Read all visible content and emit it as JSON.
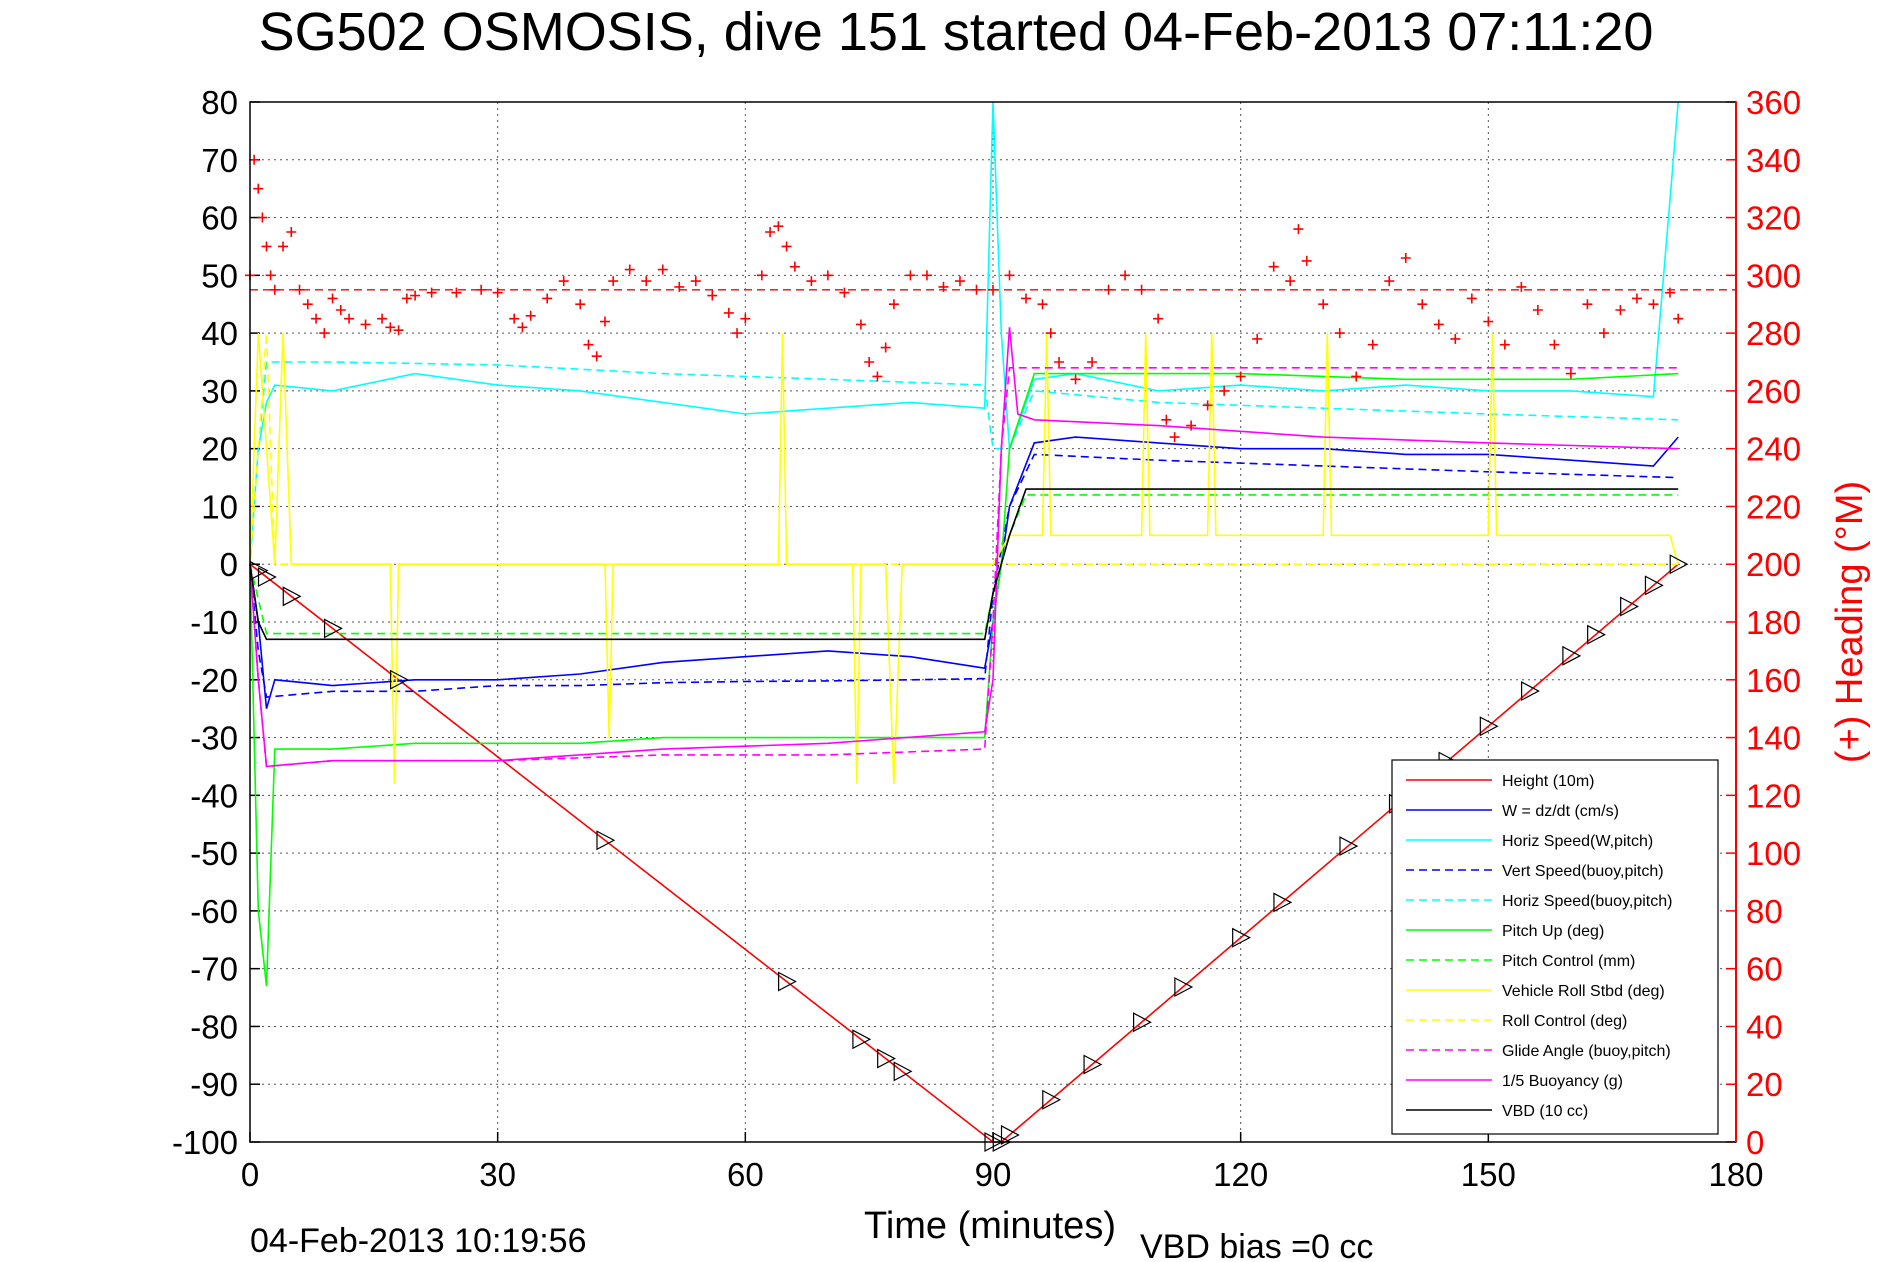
{
  "title": "SG502 OSMOSIS, dive 151 started 04-Feb-2013 07:11:20",
  "footer": {
    "timestamp": "04-Feb-2013 10:19:56",
    "vbd_bias": "VBD bias =0 cc"
  },
  "chart_data": {
    "type": "line",
    "title": "SG502 OSMOSIS, dive 151 started 04-Feb-2013 07:11:20",
    "xlabel": "Time (minutes)",
    "ylabel": "",
    "y2label": "(+) Heading (°M)",
    "xlim": [
      0,
      180
    ],
    "ylim": [
      -100,
      80
    ],
    "y2lim": [
      0,
      360
    ],
    "xticks": [
      0,
      30,
      60,
      90,
      120,
      150,
      180
    ],
    "yticks": [
      80,
      70,
      60,
      50,
      40,
      30,
      20,
      10,
      0,
      -10,
      -20,
      -30,
      -40,
      -50,
      -60,
      -70,
      -80,
      -90,
      -100
    ],
    "y2ticks": [
      360,
      340,
      320,
      300,
      280,
      260,
      240,
      220,
      200,
      180,
      160,
      140,
      120,
      100,
      80,
      60,
      40,
      20,
      0
    ],
    "grid": true,
    "legend_position": "lower-right",
    "colors": {
      "red": "#ff0000",
      "blue": "#0000ff",
      "cyan": "#00ffff",
      "green": "#00ff00",
      "yellow": "#ffff00",
      "magenta": "#ff00ff",
      "black": "#000000"
    },
    "series": [
      {
        "name": "Height (10m)",
        "color": "#ff0000",
        "style": "solid",
        "x": [
          0,
          90,
          91,
          173
        ],
        "y": [
          0,
          -100,
          -100,
          0
        ]
      },
      {
        "name": "W = dz/dt (cm/s)",
        "color": "#0000ff",
        "style": "solid",
        "x": [
          0,
          1,
          2,
          3,
          10,
          20,
          30,
          40,
          50,
          60,
          70,
          80,
          89,
          90,
          91,
          92,
          95,
          100,
          110,
          120,
          130,
          140,
          150,
          160,
          170,
          173
        ],
        "y": [
          0,
          -10,
          -25,
          -20,
          -21,
          -20,
          -20,
          -19,
          -17,
          -16,
          -15,
          -16,
          -18,
          -10,
          0,
          10,
          21,
          22,
          21,
          20,
          20,
          19,
          19,
          18,
          17,
          22
        ]
      },
      {
        "name": "Horiz Speed(W,pitch)",
        "color": "#00ffff",
        "style": "solid",
        "x": [
          0,
          1,
          2,
          3,
          10,
          20,
          30,
          40,
          45,
          50,
          55,
          60,
          70,
          80,
          89,
          90,
          91,
          92,
          95,
          100,
          110,
          120,
          130,
          140,
          150,
          160,
          170,
          173
        ],
        "y": [
          0,
          20,
          28,
          31,
          30,
          33,
          31,
          30,
          29,
          28,
          27,
          26,
          27,
          28,
          27,
          80,
          40,
          20,
          32,
          33,
          30,
          31,
          30,
          31,
          30,
          30,
          29,
          80
        ]
      },
      {
        "name": "Vert Speed(buoy,pitch)",
        "color": "#0000ff",
        "style": "dashed",
        "x": [
          0,
          1,
          2,
          10,
          20,
          30,
          40,
          50,
          60,
          70,
          80,
          89,
          90,
          92,
          95,
          110,
          130,
          150,
          173
        ],
        "y": [
          0,
          -15,
          -23,
          -22,
          -22,
          -21,
          -21,
          -20.5,
          -20.3,
          -20.2,
          -20,
          -19.8,
          -5,
          10,
          19,
          18,
          17,
          16,
          15
        ]
      },
      {
        "name": "Horiz Speed(buoy,pitch)",
        "color": "#00ffff",
        "style": "dashed",
        "x": [
          0,
          1,
          2,
          10,
          30,
          50,
          70,
          89,
          90,
          92,
          95,
          110,
          130,
          150,
          173
        ],
        "y": [
          0,
          20,
          35,
          35,
          34.5,
          33,
          32,
          31,
          20,
          20,
          30,
          28,
          27,
          26,
          25
        ]
      },
      {
        "name": "Pitch Up (deg)",
        "color": "#00ff00",
        "style": "solid",
        "x": [
          0,
          1,
          2,
          3,
          10,
          20,
          30,
          40,
          50,
          60,
          70,
          80,
          89,
          90,
          91,
          92,
          95,
          100,
          120,
          140,
          160,
          173
        ],
        "y": [
          0,
          -60,
          -73,
          -32,
          -32,
          -31,
          -31,
          -31,
          -30,
          -30,
          -30,
          -30,
          -30,
          -10,
          0,
          20,
          33,
          33,
          33,
          32,
          32,
          33
        ]
      },
      {
        "name": "Pitch Control (mm)",
        "color": "#00ff00",
        "style": "dashed",
        "x": [
          0,
          2,
          89,
          90,
          92,
          94,
          173
        ],
        "y": [
          0,
          -12,
          -12,
          -5,
          5,
          12,
          12
        ]
      },
      {
        "name": "Vehicle Roll Stbd (deg)",
        "color": "#ffff00",
        "style": "solid",
        "x": [
          0,
          1,
          3,
          4,
          5,
          6,
          17,
          17.5,
          18,
          43,
          43.5,
          44,
          64,
          64.5,
          65,
          73,
          73.5,
          74,
          77,
          78,
          79,
          89,
          90,
          92,
          96,
          96.5,
          97,
          108,
          108.5,
          109,
          116,
          116.5,
          117,
          130,
          130.5,
          131,
          150,
          150.5,
          151,
          172,
          173
        ],
        "y": [
          0,
          40,
          0,
          40,
          0,
          0,
          0,
          -38,
          0,
          0,
          -30,
          0,
          0,
          40,
          0,
          0,
          -38,
          0,
          0,
          -38,
          0,
          0,
          0,
          5,
          5,
          40,
          5,
          5,
          40,
          5,
          5,
          40,
          5,
          5,
          40,
          5,
          5,
          40,
          5,
          5,
          0
        ]
      },
      {
        "name": "Roll Control (deg)",
        "color": "#ffff00",
        "style": "dashed",
        "x": [
          0,
          2,
          3,
          5,
          89,
          90,
          92,
          173
        ],
        "y": [
          0,
          40,
          0,
          0,
          0,
          0,
          0,
          0
        ]
      },
      {
        "name": "Glide Angle (buoy,pitch)",
        "color": "#ff00ff",
        "style": "dashed",
        "x": [
          0,
          1,
          2,
          10,
          30,
          50,
          70,
          89,
          90,
          91,
          92,
          95,
          110,
          130,
          150,
          173
        ],
        "y": [
          0,
          -20,
          -35,
          -34,
          -34,
          -33,
          -33,
          -32,
          -10,
          20,
          34,
          34,
          34,
          34,
          34,
          34
        ]
      },
      {
        "name": "1/5 Buoyancy (g)",
        "color": "#ff00ff",
        "style": "solid",
        "x": [
          0,
          1,
          2,
          10,
          30,
          50,
          70,
          89,
          90,
          91,
          92,
          93,
          95,
          110,
          130,
          150,
          173
        ],
        "y": [
          0,
          -20,
          -35,
          -34,
          -34,
          -32,
          -31,
          -29,
          -20,
          20,
          41,
          26,
          25,
          24,
          22,
          21,
          20
        ]
      },
      {
        "name": "VBD (10 cc)",
        "color": "#000000",
        "style": "solid",
        "x": [
          0,
          1,
          2,
          89,
          90,
          92,
          94,
          173
        ],
        "y": [
          0,
          -10,
          -13,
          -13,
          -5,
          5,
          13,
          13
        ]
      }
    ],
    "heading_scatter": {
      "name": "Heading",
      "color": "#ff0000",
      "marker": "+",
      "mean_heading_line": 295,
      "x": [
        0,
        0.5,
        1,
        1.5,
        2,
        2.5,
        3,
        4,
        5,
        6,
        7,
        8,
        9,
        10,
        11,
        12,
        14,
        16,
        17,
        18,
        19,
        20,
        22,
        25,
        28,
        30,
        32,
        33,
        34,
        36,
        38,
        40,
        41,
        42,
        43,
        44,
        46,
        48,
        50,
        52,
        54,
        56,
        58,
        59,
        60,
        62,
        63,
        64,
        65,
        66,
        68,
        70,
        72,
        74,
        75,
        76,
        77,
        78,
        80,
        82,
        84,
        86,
        88,
        90,
        92,
        94,
        96,
        97,
        98,
        100,
        102,
        104,
        106,
        108,
        110,
        111,
        112,
        114,
        116,
        118,
        120,
        122,
        124,
        126,
        127,
        128,
        130,
        132,
        134,
        136,
        138,
        140,
        142,
        144,
        146,
        148,
        150,
        152,
        154,
        156,
        158,
        160,
        162,
        164,
        166,
        168,
        170,
        172,
        173
      ],
      "y": [
        300,
        340,
        330,
        320,
        310,
        300,
        295,
        310,
        315,
        295,
        290,
        285,
        280,
        292,
        288,
        285,
        283,
        285,
        282,
        281,
        292,
        293,
        294,
        294,
        295,
        294,
        285,
        282,
        286,
        292,
        298,
        290,
        276,
        272,
        284,
        298,
        302,
        298,
        302,
        296,
        298,
        293,
        287,
        280,
        285,
        300,
        315,
        317,
        310,
        303,
        298,
        300,
        294,
        283,
        270,
        265,
        275,
        290,
        300,
        300,
        296,
        298,
        295,
        295,
        300,
        292,
        290,
        280,
        270,
        264,
        270,
        295,
        300,
        295,
        285,
        250,
        244,
        248,
        255,
        260,
        265,
        278,
        303,
        298,
        316,
        305,
        290,
        280,
        265,
        276,
        298,
        306,
        290,
        283,
        278,
        292,
        284,
        276,
        296,
        288,
        276,
        266,
        290,
        280,
        288,
        292,
        290,
        294,
        285
      ]
    }
  }
}
